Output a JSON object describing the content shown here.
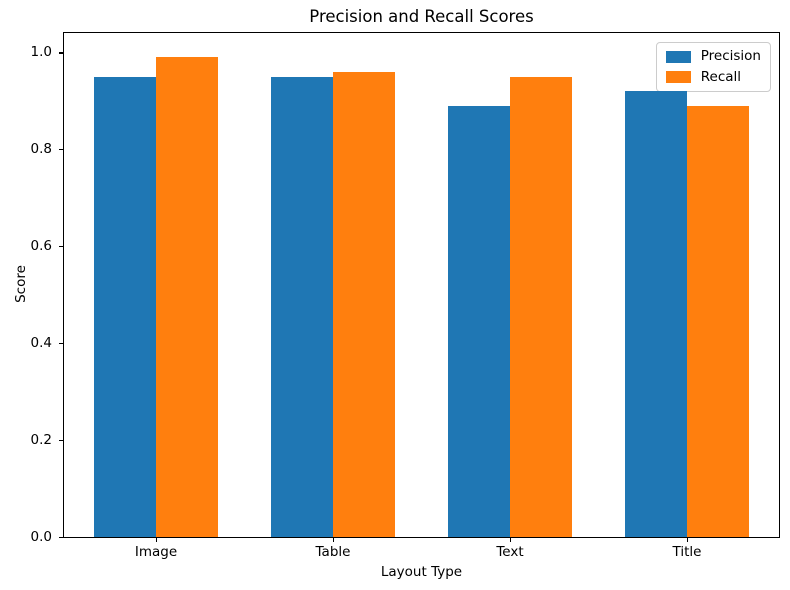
{
  "chart_data": {
    "type": "bar",
    "title": "Precision and Recall Scores",
    "xlabel": "Layout Type",
    "ylabel": "Score",
    "categories": [
      "Image",
      "Table",
      "Text",
      "Title"
    ],
    "series": [
      {
        "name": "Precision",
        "color": "#1f77b4",
        "values": [
          0.95,
          0.95,
          0.89,
          0.92
        ]
      },
      {
        "name": "Recall",
        "color": "#ff7f0e",
        "values": [
          0.99,
          0.96,
          0.95,
          0.89
        ]
      }
    ],
    "ylim": [
      0,
      1.04
    ],
    "yticks": [
      0.0,
      0.2,
      0.4,
      0.6,
      0.8,
      1.0
    ],
    "ytick_labels": [
      "0.0",
      "0.2",
      "0.4",
      "0.6",
      "0.8",
      "1.0"
    ],
    "bar_width": 0.35,
    "x_margin": 0.52,
    "legend_position": "upper right",
    "grid": false,
    "bar_colors": {
      "precision": "#1f77b4",
      "recall": "#ff7f0e"
    }
  }
}
